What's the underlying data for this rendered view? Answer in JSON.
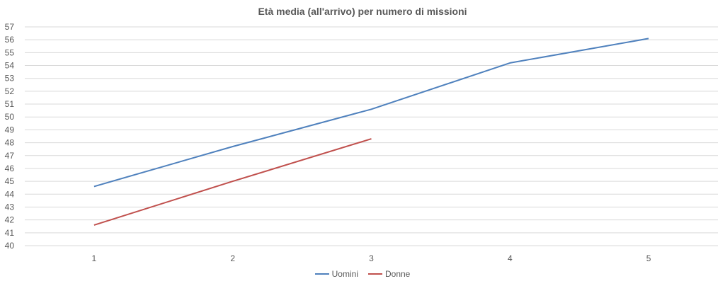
{
  "chart_data": {
    "type": "line",
    "title": "Età media (all'arrivo) per numero di missioni",
    "xlabel": "",
    "ylabel": "",
    "categories": [
      "1",
      "2",
      "3",
      "4",
      "5"
    ],
    "ylim": [
      40,
      57
    ],
    "yticks": [
      40,
      41,
      42,
      43,
      44,
      45,
      46,
      47,
      48,
      49,
      50,
      51,
      52,
      53,
      54,
      55,
      56,
      57
    ],
    "grid": true,
    "legend_position": "bottom",
    "series": [
      {
        "name": "Uomini",
        "color": "#4F81BD",
        "values": [
          44.6,
          47.7,
          50.6,
          54.2,
          56.1
        ]
      },
      {
        "name": "Donne",
        "color": "#C0504D",
        "values": [
          41.6,
          45.0,
          48.3,
          null,
          null
        ]
      }
    ]
  }
}
